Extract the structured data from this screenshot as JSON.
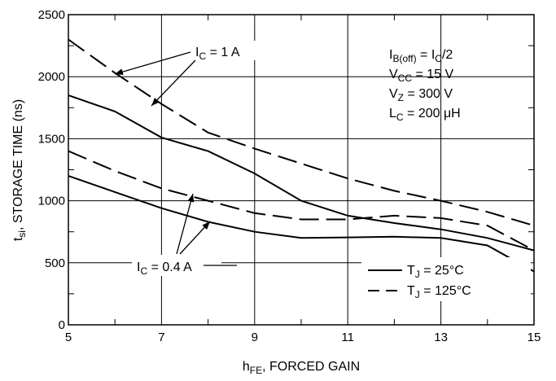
{
  "chart_data": {
    "type": "line",
    "xlabel": "hFE, FORCED GAIN",
    "ylabel": "tsi, STORAGE TIME (ns)",
    "xlim": [
      5,
      15
    ],
    "ylim": [
      0,
      2500
    ],
    "xticks": [
      5,
      7,
      9,
      11,
      13,
      15
    ],
    "yticks": [
      0,
      500,
      1000,
      1500,
      2000,
      2500
    ],
    "grid": true,
    "legend_position": "bottom-right",
    "conditions": [
      "IB(off) = IC/2",
      "VCC = 15 V",
      "VZ = 300 V",
      "LC = 200 μH"
    ],
    "annotations": [
      "IC = 1 A",
      "IC = 0.4 A"
    ],
    "legend": [
      {
        "label": "TJ = 25°C",
        "style": "solid"
      },
      {
        "label": "TJ = 125°C",
        "style": "dashed"
      }
    ],
    "series": [
      {
        "condition": "IC = 1 A",
        "style": "dashed",
        "x": [
          5,
          6,
          7,
          8,
          9,
          10,
          11,
          12,
          13,
          14,
          15
        ],
        "y": [
          2300,
          2030,
          1780,
          1550,
          1420,
          1300,
          1180,
          1080,
          1000,
          910,
          800
        ]
      },
      {
        "condition": "IC = 1 A",
        "style": "solid",
        "x": [
          5,
          6,
          7,
          8,
          9,
          10,
          11,
          12,
          13,
          14,
          15
        ],
        "y": [
          1850,
          1720,
          1510,
          1400,
          1220,
          1000,
          880,
          820,
          770,
          700,
          600
        ]
      },
      {
        "condition": "IC = 0.4 A",
        "style": "dashed",
        "x": [
          5,
          6,
          7,
          8,
          9,
          10,
          11,
          12,
          13,
          14,
          15
        ],
        "y": [
          1400,
          1240,
          1100,
          1000,
          900,
          850,
          850,
          880,
          860,
          800,
          600
        ]
      },
      {
        "condition": "IC = 0.4 A",
        "style": "solid",
        "x": [
          5,
          6,
          7,
          8,
          9,
          10,
          11,
          12,
          13,
          14,
          15
        ],
        "y": [
          1200,
          1070,
          940,
          830,
          750,
          700,
          705,
          710,
          700,
          640,
          430
        ]
      }
    ]
  }
}
